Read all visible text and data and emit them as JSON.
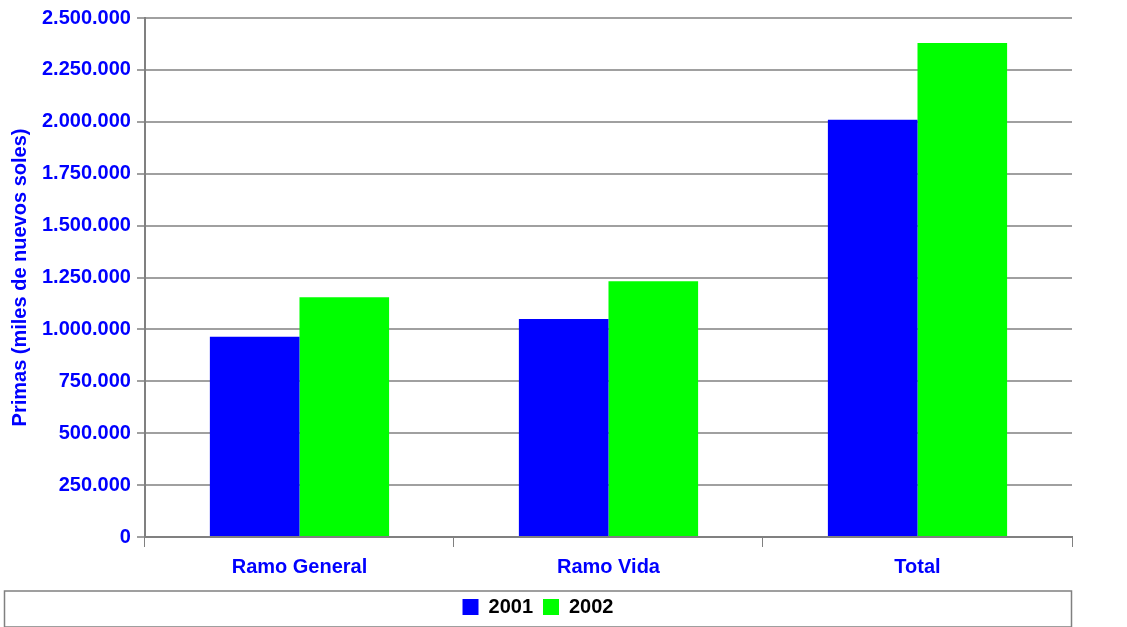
{
  "chart_data": {
    "type": "bar",
    "ylabel": "Primas (miles de nuevos soles)",
    "categories": [
      "Ramo General",
      "Ramo Vida",
      "Total"
    ],
    "series": [
      {
        "name": "2001",
        "color": "#0000ff",
        "values": [
          965000,
          1050000,
          2010000
        ]
      },
      {
        "name": "2002",
        "color": "#00ff00",
        "values": [
          1155000,
          1232000,
          2380000
        ]
      }
    ],
    "ylim": [
      0,
      2500000
    ],
    "yticks": [
      0,
      {
        "value": 250000,
        "label": "250.000"
      },
      {
        "value": 500000,
        "label": "500.000"
      },
      {
        "value": 750000,
        "label": "750.000"
      },
      {
        "value": 1000000,
        "label": "1.000.000"
      },
      {
        "value": 1250000,
        "label": "1.250.000"
      },
      {
        "value": 1500000,
        "label": "1.500.000"
      },
      {
        "value": 1750000,
        "label": "1.750.000"
      },
      {
        "value": 2000000,
        "label": "2.000.000"
      },
      {
        "value": 2250000,
        "label": "2.250.000"
      },
      {
        "value": 2500000,
        "label": "2.500.000"
      }
    ],
    "grid": "y",
    "legend": "bottom"
  }
}
